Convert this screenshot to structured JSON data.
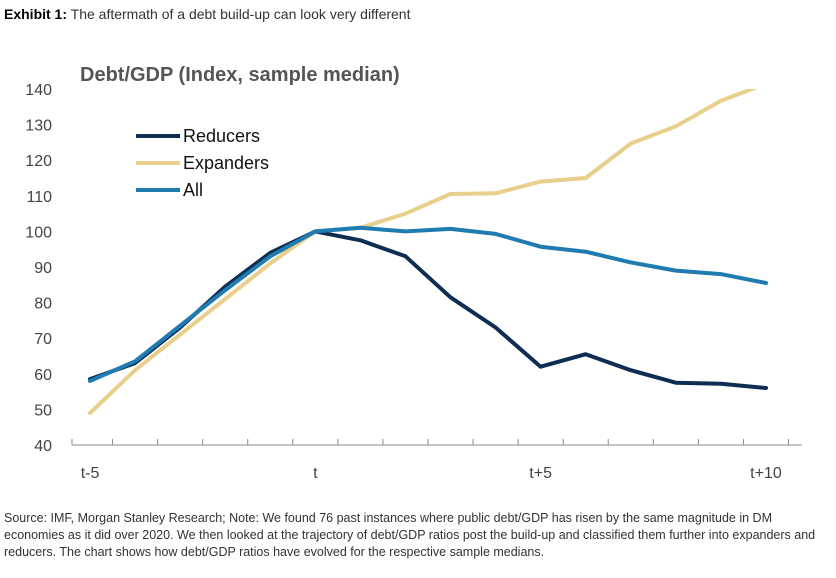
{
  "exhibit": {
    "label": "Exhibit 1:",
    "title": "The aftermath of a debt build-up can look very different"
  },
  "chart_data": {
    "type": "line",
    "title": "Debt/GDP (Index, sample median)",
    "xlabel": "",
    "ylabel": "",
    "x": [
      -5,
      -4,
      -3,
      -2,
      -1,
      0,
      1,
      2,
      3,
      4,
      5,
      6,
      7,
      8,
      9,
      10
    ],
    "xlim": [
      -5.4,
      10.8
    ],
    "ylim": [
      40,
      140
    ],
    "yticks": [
      40,
      50,
      60,
      70,
      80,
      90,
      100,
      110,
      120,
      130,
      140
    ],
    "xtick_labels": [
      {
        "x": -5,
        "label": "t-5"
      },
      {
        "x": 0,
        "label": "t"
      },
      {
        "x": 5,
        "label": "t+5"
      },
      {
        "x": 10,
        "label": "t+10"
      }
    ],
    "grid": false,
    "legend": "upper-left",
    "series": [
      {
        "name": "Reducers",
        "color": "#0d2d52",
        "values": [
          58.5,
          63,
          73,
          84.5,
          94,
          100,
          97.5,
          93,
          81.5,
          73,
          62,
          65.5,
          61,
          57.5,
          57.2,
          56
        ]
      },
      {
        "name": "Expanders",
        "color": "#e8cf8c",
        "values": [
          49,
          61,
          71,
          81,
          91,
          100,
          101,
          105,
          110.5,
          110.7,
          114,
          115,
          124.7,
          129.5,
          136.7,
          141.5
        ]
      },
      {
        "name": "All",
        "color": "#1f7bb0",
        "values": [
          58,
          63.5,
          73.5,
          83.5,
          93,
          100,
          101,
          100,
          100.7,
          99.3,
          95.7,
          94.3,
          91.3,
          89,
          88,
          85.5
        ]
      }
    ]
  },
  "source": "Source: IMF, Morgan Stanley Research; Note: We found 76 past instances where public debt/GDP has risen by the same magnitude in DM economies as it did over 2020. We then looked at the trajectory of debt/GDP ratios post the build-up and classified them further into expanders and reducers. The chart shows how debt/GDP ratios have evolved for the respective sample medians."
}
